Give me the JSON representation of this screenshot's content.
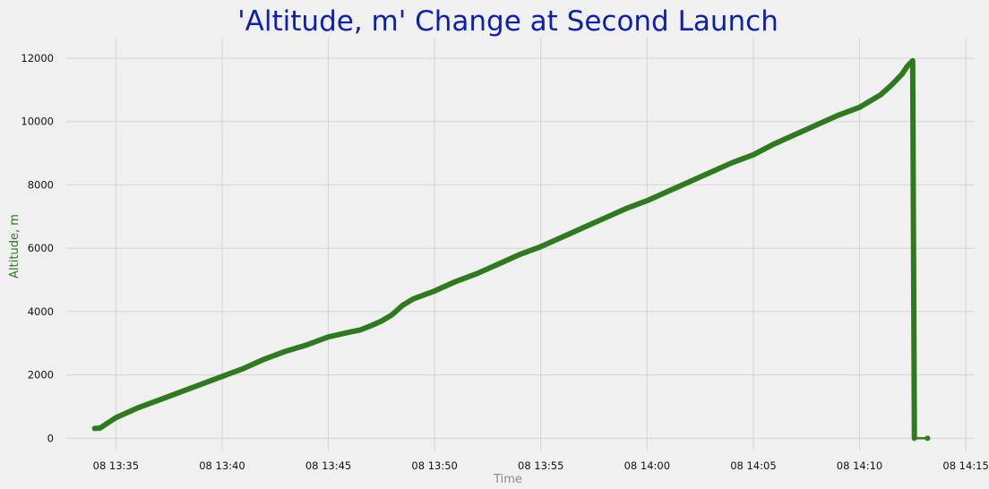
{
  "chart_data": {
    "type": "line",
    "title": "'Altitude, m' Change at Second Launch",
    "xlabel": "Time",
    "ylabel": "Altitude, m",
    "x_tick_labels": [
      "08 13:35",
      "08 13:40",
      "08 13:45",
      "08 13:50",
      "08 13:55",
      "08 14:00",
      "08 14:05",
      "08 14:10",
      "08 14:15"
    ],
    "x_tick_minutes": [
      35,
      40,
      45,
      50,
      55,
      60,
      65,
      70,
      75
    ],
    "y_tick_labels": [
      "0",
      "2000",
      "4000",
      "6000",
      "8000",
      "10000",
      "12000"
    ],
    "y_ticks": [
      0,
      2000,
      4000,
      6000,
      8000,
      10000,
      12000
    ],
    "xlim": [
      "08 13:32:40",
      "08 14:15:25"
    ],
    "ylim": [
      -500,
      12650
    ],
    "grid": true,
    "colors": {
      "line": "#2e7a1e",
      "title": "#0b1fb0",
      "ylabel": "#2a7a1e",
      "xlabel": "#8a8a8a",
      "plot_background": "#f0f0f0",
      "grid": "#d4d4d4"
    },
    "series": [
      {
        "x_minutes_after_13": [
          34.0,
          34.25,
          35.0,
          36.0,
          37.0,
          38.0,
          39.0,
          40.0,
          41.0,
          42.0,
          43.0,
          44.0,
          45.0,
          46.0,
          46.5,
          47.0,
          47.5,
          48.0,
          48.5,
          49.0,
          50.0,
          51.0,
          52.0,
          53.0,
          54.0,
          55.0,
          56.0,
          57.0,
          58.0,
          59.0,
          60.0,
          61.0,
          62.0,
          63.0,
          64.0,
          65.0,
          66.0,
          67.0,
          68.0,
          69.0,
          70.0,
          71.0,
          71.5,
          72.0,
          72.25,
          72.5,
          72.58,
          73.2
        ],
        "y": [
          310,
          320,
          650,
          950,
          1200,
          1450,
          1700,
          1950,
          2200,
          2500,
          2750,
          2950,
          3200,
          3350,
          3420,
          3550,
          3700,
          3900,
          4200,
          4400,
          4650,
          4950,
          5200,
          5500,
          5800,
          6050,
          6350,
          6650,
          6950,
          7250,
          7500,
          7800,
          8100,
          8400,
          8700,
          8950,
          9300,
          9600,
          9900,
          10200,
          10450,
          10850,
          11150,
          11500,
          11750,
          11920,
          0,
          0
        ]
      }
    ]
  }
}
